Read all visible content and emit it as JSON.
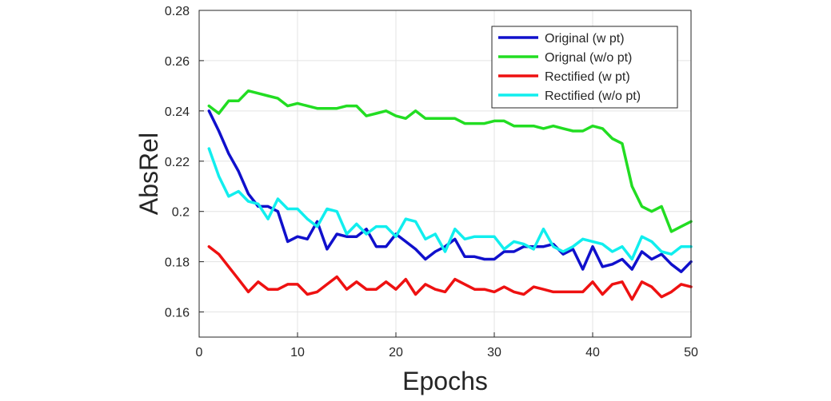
{
  "chart_data": {
    "type": "line",
    "title": "",
    "xlabel": "Epochs",
    "ylabel": "AbsRel",
    "xlim": [
      0,
      50
    ],
    "ylim": [
      0.15,
      0.28
    ],
    "x_ticks": [
      0,
      10,
      20,
      30,
      40,
      50
    ],
    "y_ticks": [
      0.16,
      0.18,
      0.2,
      0.22,
      0.24,
      0.26,
      0.28
    ],
    "y_tick_labels": [
      "0.16",
      "0.18",
      "0.2",
      "0.22",
      "0.24",
      "0.26",
      "0.28"
    ],
    "grid": true,
    "legend_position": "top-right",
    "x": [
      1,
      2,
      3,
      4,
      5,
      6,
      7,
      8,
      9,
      10,
      11,
      12,
      13,
      14,
      15,
      16,
      17,
      18,
      19,
      20,
      21,
      22,
      23,
      24,
      25,
      26,
      27,
      28,
      29,
      30,
      31,
      32,
      33,
      34,
      35,
      36,
      37,
      38,
      39,
      40,
      41,
      42,
      43,
      44,
      45,
      46,
      47,
      48,
      49,
      50
    ],
    "series": [
      {
        "name": "Original (w pt)",
        "color": "#1010cc",
        "values": [
          0.24,
          0.232,
          0.223,
          0.216,
          0.207,
          0.202,
          0.202,
          0.2,
          0.188,
          0.19,
          0.189,
          0.196,
          0.185,
          0.191,
          0.19,
          0.19,
          0.193,
          0.186,
          0.186,
          0.191,
          0.188,
          0.185,
          0.181,
          0.184,
          0.186,
          0.189,
          0.182,
          0.182,
          0.181,
          0.181,
          0.184,
          0.184,
          0.186,
          0.186,
          0.186,
          0.187,
          0.183,
          0.185,
          0.177,
          0.186,
          0.178,
          0.179,
          0.181,
          0.177,
          0.184,
          0.181,
          0.183,
          0.179,
          0.176,
          0.18
        ]
      },
      {
        "name": "Orignal (w/o pt)",
        "color": "#22dd22",
        "values": [
          0.242,
          0.239,
          0.244,
          0.244,
          0.248,
          0.247,
          0.246,
          0.245,
          0.242,
          0.243,
          0.242,
          0.241,
          0.241,
          0.241,
          0.242,
          0.242,
          0.238,
          0.239,
          0.24,
          0.238,
          0.237,
          0.24,
          0.237,
          0.237,
          0.237,
          0.237,
          0.235,
          0.235,
          0.235,
          0.236,
          0.236,
          0.234,
          0.234,
          0.234,
          0.233,
          0.234,
          0.233,
          0.232,
          0.232,
          0.234,
          0.233,
          0.229,
          0.227,
          0.21,
          0.202,
          0.2,
          0.202,
          0.192,
          0.194,
          0.196
        ]
      },
      {
        "name": "Rectified (w pt)",
        "color": "#ee1111",
        "values": [
          0.186,
          0.183,
          0.178,
          0.173,
          0.168,
          0.172,
          0.169,
          0.169,
          0.171,
          0.171,
          0.167,
          0.168,
          0.171,
          0.174,
          0.169,
          0.172,
          0.169,
          0.169,
          0.172,
          0.169,
          0.173,
          0.167,
          0.171,
          0.169,
          0.168,
          0.173,
          0.171,
          0.169,
          0.169,
          0.168,
          0.17,
          0.168,
          0.167,
          0.17,
          0.169,
          0.168,
          0.168,
          0.168,
          0.168,
          0.172,
          0.167,
          0.171,
          0.172,
          0.165,
          0.172,
          0.17,
          0.166,
          0.168,
          0.171,
          0.17
        ]
      },
      {
        "name": "Rectified (w/o pt)",
        "color": "#11eeee",
        "values": [
          0.225,
          0.214,
          0.206,
          0.208,
          0.204,
          0.203,
          0.197,
          0.205,
          0.201,
          0.201,
          0.197,
          0.194,
          0.201,
          0.2,
          0.191,
          0.195,
          0.191,
          0.194,
          0.194,
          0.19,
          0.197,
          0.196,
          0.189,
          0.191,
          0.184,
          0.193,
          0.189,
          0.19,
          0.19,
          0.19,
          0.185,
          0.188,
          0.187,
          0.185,
          0.193,
          0.186,
          0.184,
          0.186,
          0.189,
          0.188,
          0.187,
          0.184,
          0.186,
          0.181,
          0.19,
          0.188,
          0.184,
          0.183,
          0.186,
          0.186
        ]
      }
    ]
  }
}
